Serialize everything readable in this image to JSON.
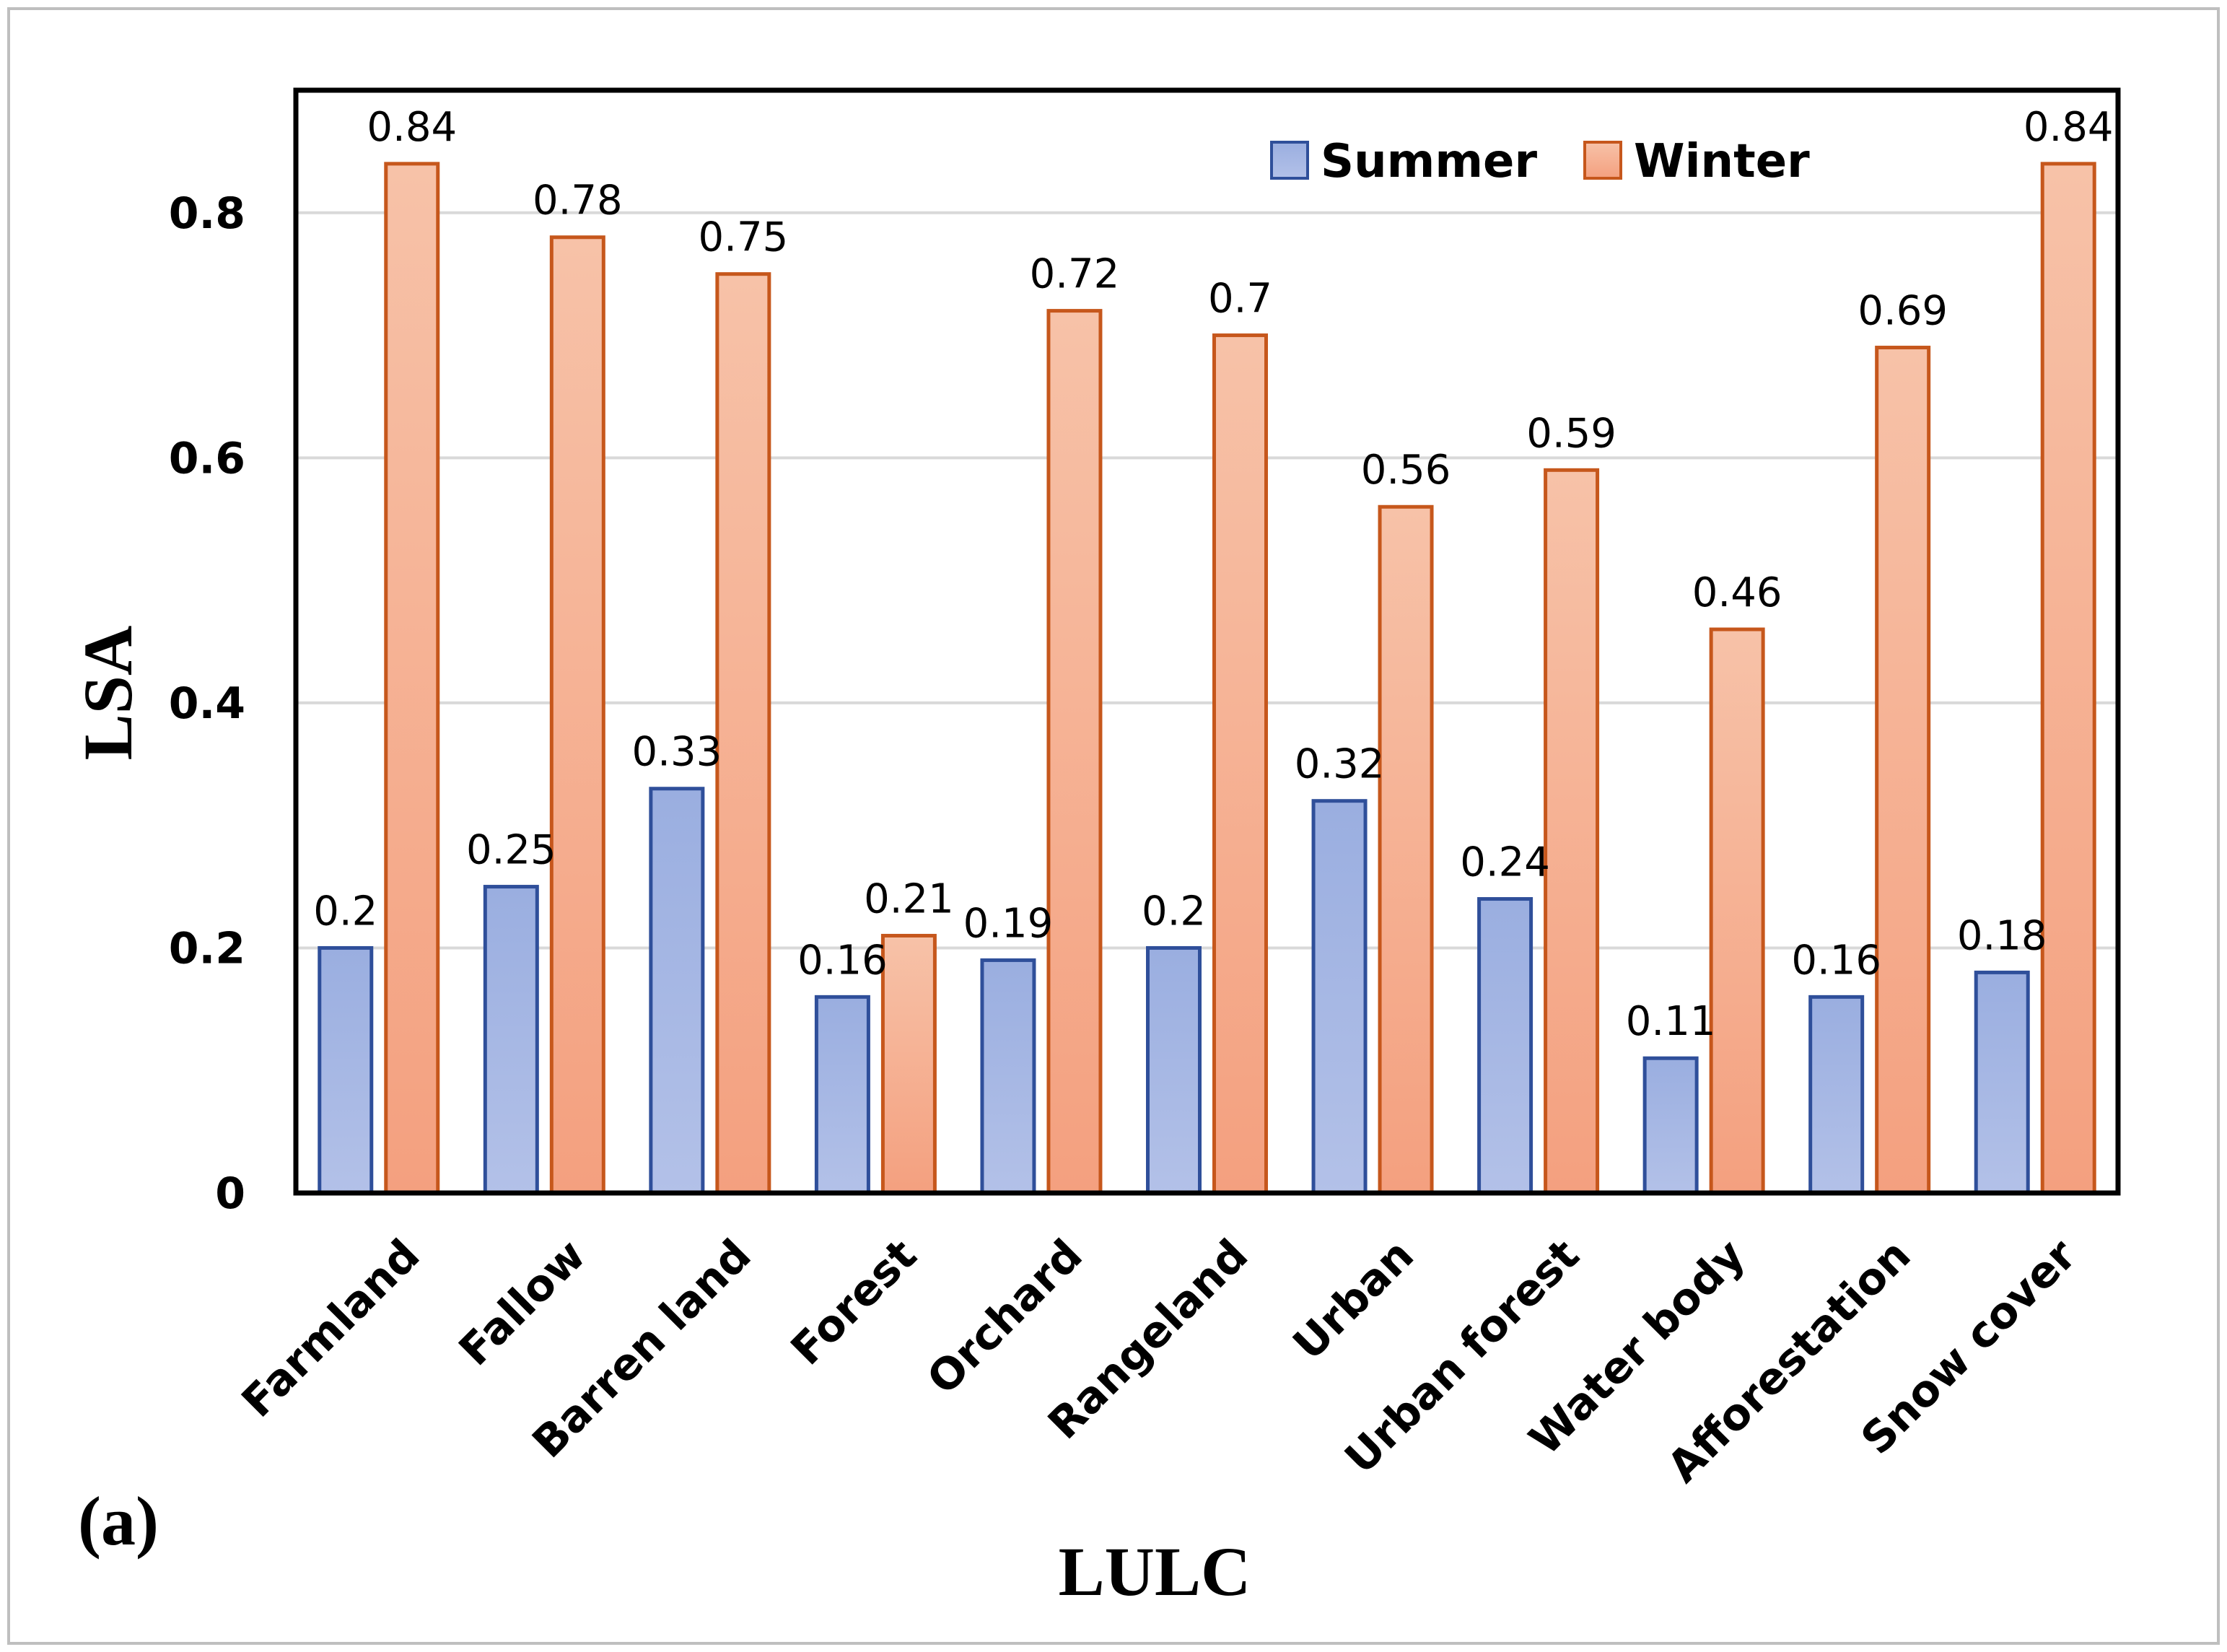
{
  "chart_data": {
    "type": "bar",
    "title": "",
    "panel_label": "(a)",
    "xlabel": "LULC",
    "ylabel": "LSA",
    "ylim": [
      0,
      0.9
    ],
    "yticks": [
      0,
      0.2,
      0.4,
      0.6,
      0.8
    ],
    "ytick_labels": [
      "0",
      "0.2",
      "0.4",
      "0.6",
      "0.8"
    ],
    "grid": true,
    "legend_position": "top-right",
    "categories": [
      "Farmland",
      "Fallow",
      "Barren land",
      "Forest",
      "Orchard",
      "Rangeland",
      "Urban",
      "Urban forest",
      "Water body",
      "Afforestation",
      "Snow cover"
    ],
    "series": [
      {
        "name": "Summer",
        "values": [
          0.2,
          0.25,
          0.33,
          0.16,
          0.19,
          0.2,
          0.32,
          0.24,
          0.11,
          0.16,
          0.18
        ],
        "labels": [
          "0.2",
          "0.25",
          "0.33",
          "0.16",
          "0.19",
          "0.2",
          "0.32",
          "0.24",
          "0.11",
          "0.16",
          "0.18"
        ],
        "color_top": "#9aaee0",
        "color_bottom": "#b3c1e8",
        "edge_color": "#2f4f9a"
      },
      {
        "name": "Winter",
        "values": [
          0.84,
          0.78,
          0.75,
          0.21,
          0.72,
          0.7,
          0.56,
          0.59,
          0.46,
          0.69,
          0.84
        ],
        "labels": [
          "0.84",
          "0.78",
          "0.75",
          "0.21",
          "0.72",
          "0.7",
          "0.56",
          "0.59",
          "0.46",
          "0.69",
          "0.84"
        ],
        "color_top": "#f7c2a8",
        "color_bottom": "#f4a07f",
        "edge_color": "#c6571c"
      }
    ]
  }
}
